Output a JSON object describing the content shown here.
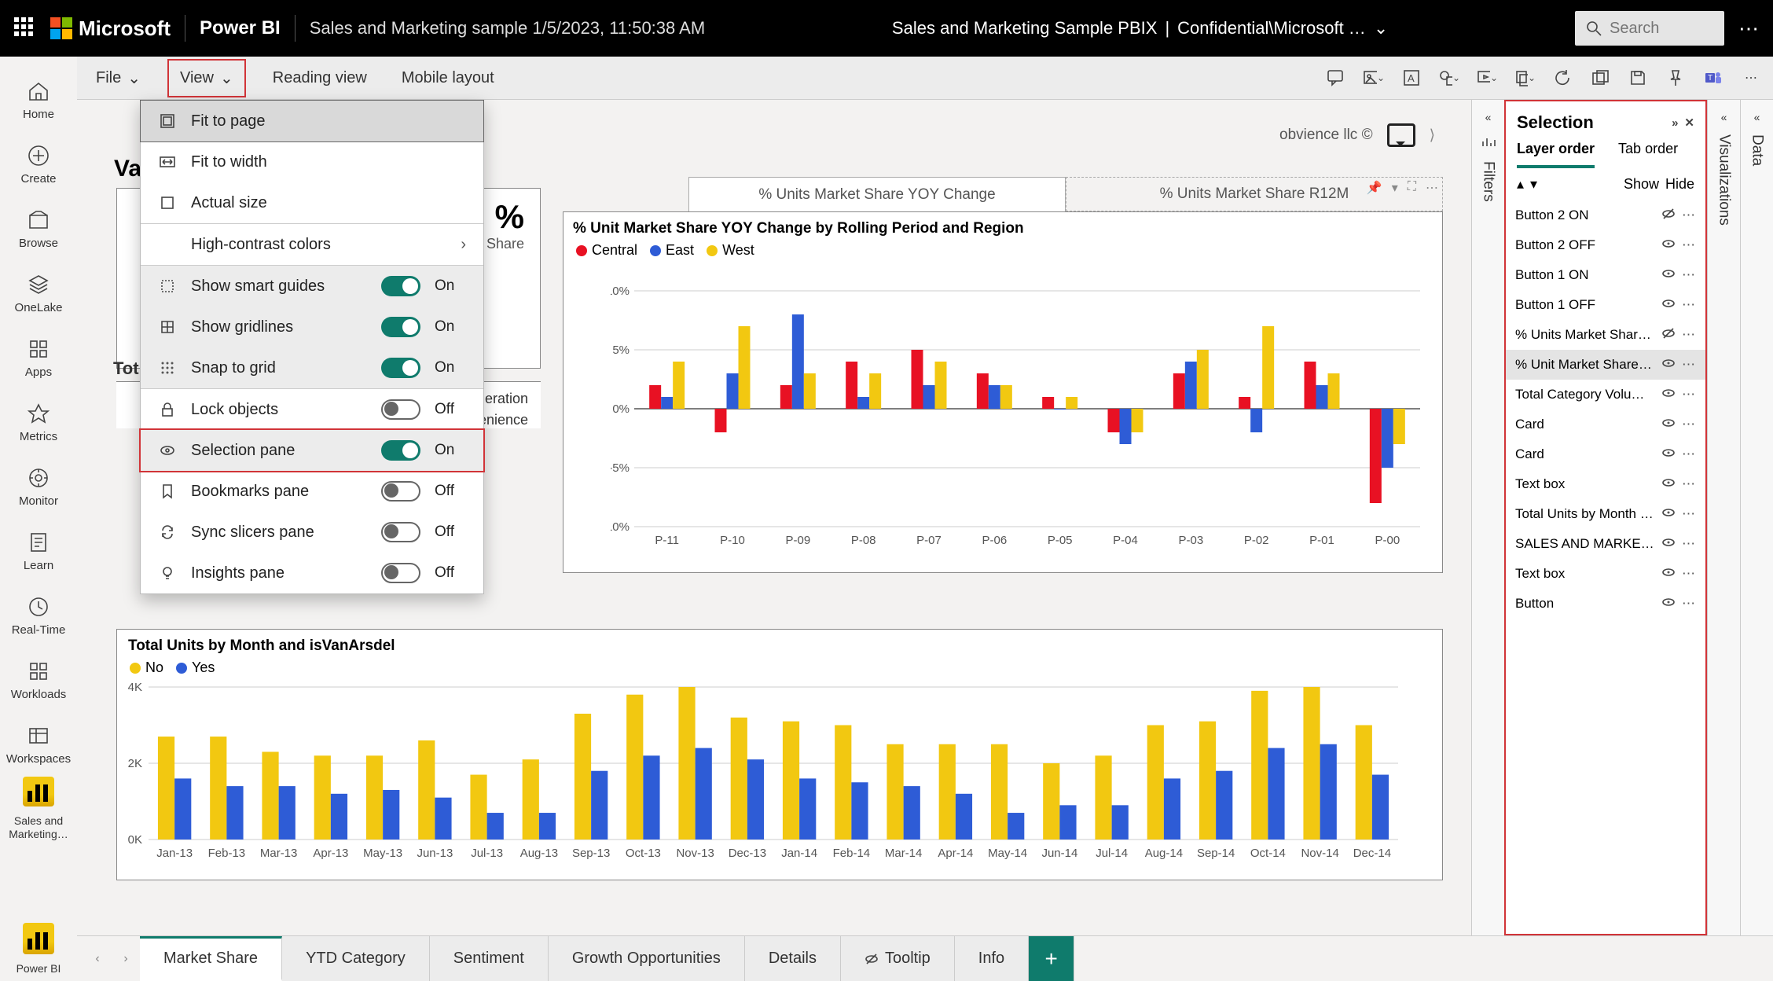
{
  "topbar": {
    "brand": "Microsoft",
    "product": "Power BI",
    "doc_title": "Sales and Marketing sample 1/5/2023, 11:50:38 AM",
    "center_title": "Sales and Marketing Sample PBIX",
    "center_sensitivity": "Confidential\\Microsoft …",
    "search_placeholder": "Search"
  },
  "leftnav": [
    {
      "label": "Home"
    },
    {
      "label": "Create"
    },
    {
      "label": "Browse"
    },
    {
      "label": "OneLake"
    },
    {
      "label": "Apps"
    },
    {
      "label": "Metrics"
    },
    {
      "label": "Monitor"
    },
    {
      "label": "Learn"
    },
    {
      "label": "Real-Time"
    },
    {
      "label": "Workloads"
    },
    {
      "label": "Workspaces"
    },
    {
      "label": "Sales and Marketing…"
    }
  ],
  "leftnav_bottom": {
    "label": "Power BI"
  },
  "ribbon": {
    "file": "File",
    "view": "View",
    "reading": "Reading view",
    "mobile": "Mobile layout"
  },
  "view_menu": {
    "fit_page": "Fit to page",
    "fit_width": "Fit to width",
    "actual": "Actual size",
    "high_contrast": "High-contrast colors",
    "smart_guides": {
      "label": "Show smart guides",
      "state": "On"
    },
    "gridlines": {
      "label": "Show gridlines",
      "state": "On"
    },
    "snap": {
      "label": "Snap to grid",
      "state": "On"
    },
    "lock": {
      "label": "Lock objects",
      "state": "Off"
    },
    "selpane": {
      "label": "Selection pane",
      "state": "On"
    },
    "bookmarks": {
      "label": "Bookmarks pane",
      "state": "Off"
    },
    "sync": {
      "label": "Sync slicers pane",
      "state": "Off"
    },
    "insights": {
      "label": "Insights pane",
      "state": "Off"
    }
  },
  "canvas": {
    "attribution": "obvience llc ©",
    "hidden_card_big": "%",
    "hidden_card_sub": "rket Share",
    "hidden_card_prefix": "Va",
    "hidden_list_title": "Tot",
    "hidden_list_items": [
      "Moderation",
      "Convenience"
    ]
  },
  "chart1": {
    "tab_active": "% Units Market Share YOY Change",
    "tab_inactive": "% Units Market Share R12M",
    "title": "% Unit Market Share YOY Change by Rolling Period and Region",
    "legend": [
      {
        "name": "Central",
        "color": "#e81123"
      },
      {
        "name": "East",
        "color": "#2e5cd6"
      },
      {
        "name": "West",
        "color": "#f2c811"
      }
    ],
    "y": {
      "min": -10,
      "max": 10,
      "step": 5,
      "fmt": "%"
    },
    "categories": [
      "P-11",
      "P-10",
      "P-09",
      "P-08",
      "P-07",
      "P-06",
      "P-05",
      "P-04",
      "P-03",
      "P-02",
      "P-01",
      "P-00"
    ],
    "series": {
      "Central": [
        2,
        -2,
        2,
        4,
        5,
        3,
        1,
        -2,
        3,
        1,
        4,
        -8
      ],
      "East": [
        1,
        3,
        8,
        1,
        2,
        2,
        0,
        -3,
        4,
        -2,
        2,
        -5
      ],
      "West": [
        4,
        7,
        3,
        3,
        4,
        2,
        1,
        -2,
        5,
        7,
        3,
        -3
      ]
    },
    "bg": "#ffffff"
  },
  "chart2": {
    "title": "Total Units by Month and isVanArsdel",
    "legend": [
      {
        "name": "No",
        "color": "#f2c811"
      },
      {
        "name": "Yes",
        "color": "#2e5cd6"
      }
    ],
    "y": {
      "min": 0,
      "max": 4000,
      "ticks": [
        0,
        2000,
        4000
      ],
      "tick_labels": [
        "0K",
        "2K",
        "4K"
      ]
    },
    "categories": [
      "Jan-13",
      "Feb-13",
      "Mar-13",
      "Apr-13",
      "May-13",
      "Jun-13",
      "Jul-13",
      "Aug-13",
      "Sep-13",
      "Oct-13",
      "Nov-13",
      "Dec-13",
      "Jan-14",
      "Feb-14",
      "Mar-14",
      "Apr-14",
      "May-14",
      "Jun-14",
      "Jul-14",
      "Aug-14",
      "Sep-14",
      "Oct-14",
      "Nov-14",
      "Dec-14"
    ],
    "series": {
      "No": [
        2700,
        2700,
        2300,
        2200,
        2200,
        2600,
        1700,
        2100,
        3300,
        3800,
        4000,
        3200,
        3100,
        3000,
        2500,
        2500,
        2500,
        2000,
        2200,
        3000,
        3100,
        3900,
        4000,
        3000
      ],
      "Yes": [
        1600,
        1400,
        1400,
        1200,
        1300,
        1100,
        700,
        700,
        1800,
        2200,
        2400,
        2100,
        1600,
        1500,
        1400,
        1200,
        700,
        900,
        900,
        1600,
        1800,
        2400,
        2500,
        1700
      ]
    }
  },
  "pages": [
    {
      "label": "Market Share",
      "active": true
    },
    {
      "label": "YTD Category"
    },
    {
      "label": "Sentiment"
    },
    {
      "label": "Growth Opportunities"
    },
    {
      "label": "Details"
    },
    {
      "label": "Tooltip",
      "icon": true
    },
    {
      "label": "Info"
    }
  ],
  "right_panes": {
    "filters": "Filters",
    "visualizations": "Visualizations",
    "data": "Data"
  },
  "selection": {
    "title": "Selection",
    "tab_layer": "Layer order",
    "tab_tab": "Tab order",
    "show": "Show",
    "hide": "Hide",
    "items": [
      {
        "name": "Button 2 ON",
        "visible": false
      },
      {
        "name": "Button 2 OFF",
        "visible": true
      },
      {
        "name": "Button 1 ON",
        "visible": true
      },
      {
        "name": "Button 1 OFF",
        "visible": true
      },
      {
        "name": "% Units Market Share …",
        "visible": false
      },
      {
        "name": "% Unit Market Share Y…",
        "visible": true,
        "selected": true
      },
      {
        "name": "Total Category Volum…",
        "visible": true
      },
      {
        "name": "Card",
        "visible": true
      },
      {
        "name": "Card",
        "visible": true
      },
      {
        "name": "Text box",
        "visible": true
      },
      {
        "name": "Total Units by Month …",
        "visible": true
      },
      {
        "name": "SALES AND MARKETI…",
        "visible": true
      },
      {
        "name": "Text box",
        "visible": true
      },
      {
        "name": "Button",
        "visible": true
      }
    ]
  }
}
